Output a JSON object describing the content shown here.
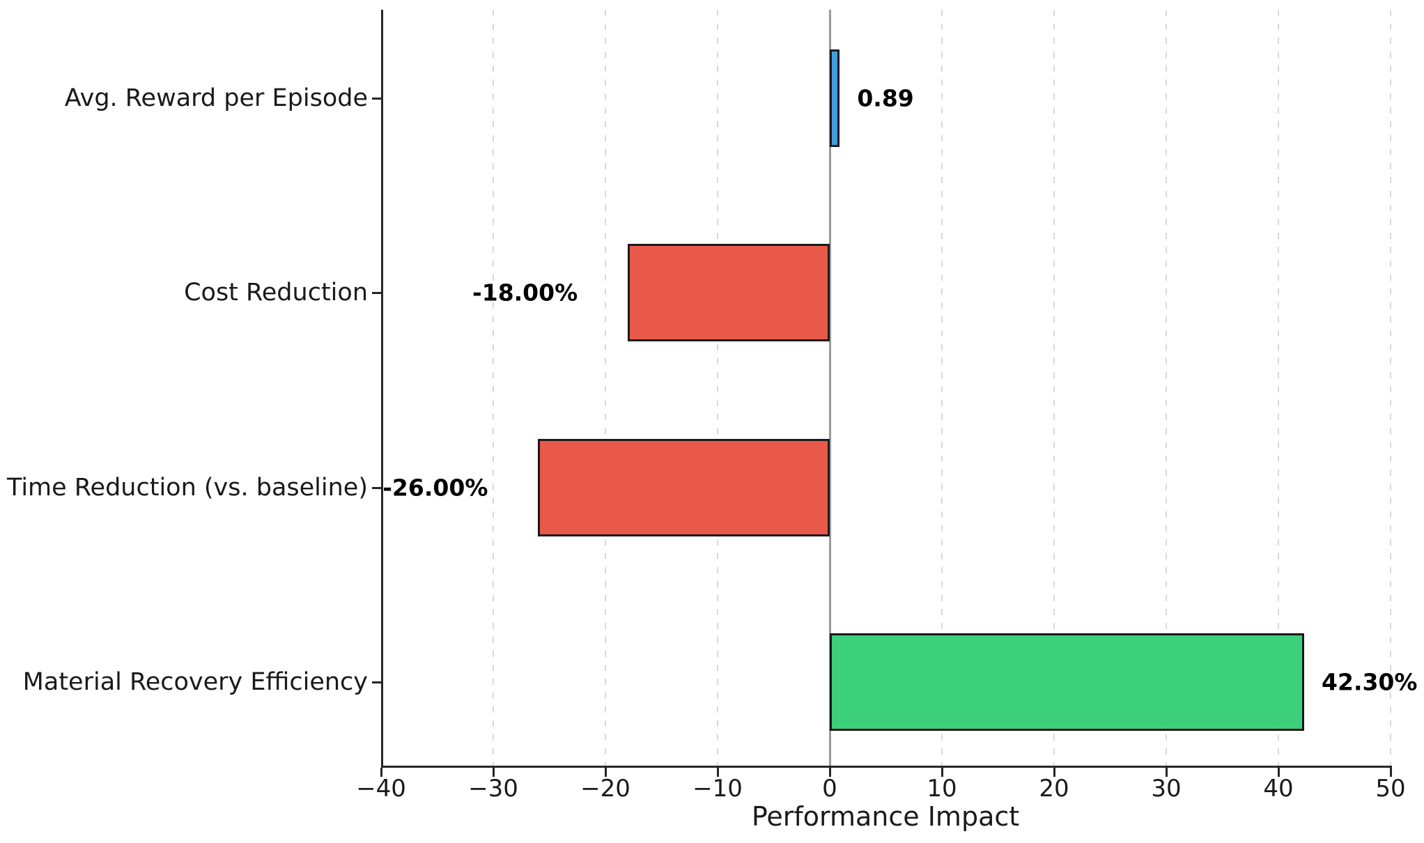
{
  "chart_data": {
    "type": "bar",
    "orientation": "horizontal",
    "title": "",
    "xlabel": "Performance Impact",
    "ylabel": "",
    "categories": [
      "Avg. Reward per Episode",
      "Cost Reduction",
      "Time Reduction (vs. baseline)",
      "Material Recovery Efficiency"
    ],
    "values": [
      0.89,
      -18.0,
      -26.0,
      42.3
    ],
    "value_labels": [
      "0.89",
      "-18.00%",
      "-26.00%",
      "42.30%"
    ],
    "bar_colors": [
      "#3498db",
      "#e74c3c",
      "#e74c3c",
      "#2ecc71"
    ],
    "bar_edge_color": "#1a1a1a",
    "xlim": [
      -40,
      50
    ],
    "x_tick_values": [
      -40,
      -30,
      -20,
      -10,
      0,
      10,
      20,
      30,
      40,
      50
    ],
    "x_tick_labels": [
      "−40",
      "−30",
      "−20",
      "−10",
      "0",
      "10",
      "20",
      "30",
      "40",
      "50"
    ],
    "grid": "vertical-dashed",
    "gridline_color": "#d9d9d9",
    "zero_line": true,
    "zero_line_color": "#999999",
    "legend": "none"
  }
}
